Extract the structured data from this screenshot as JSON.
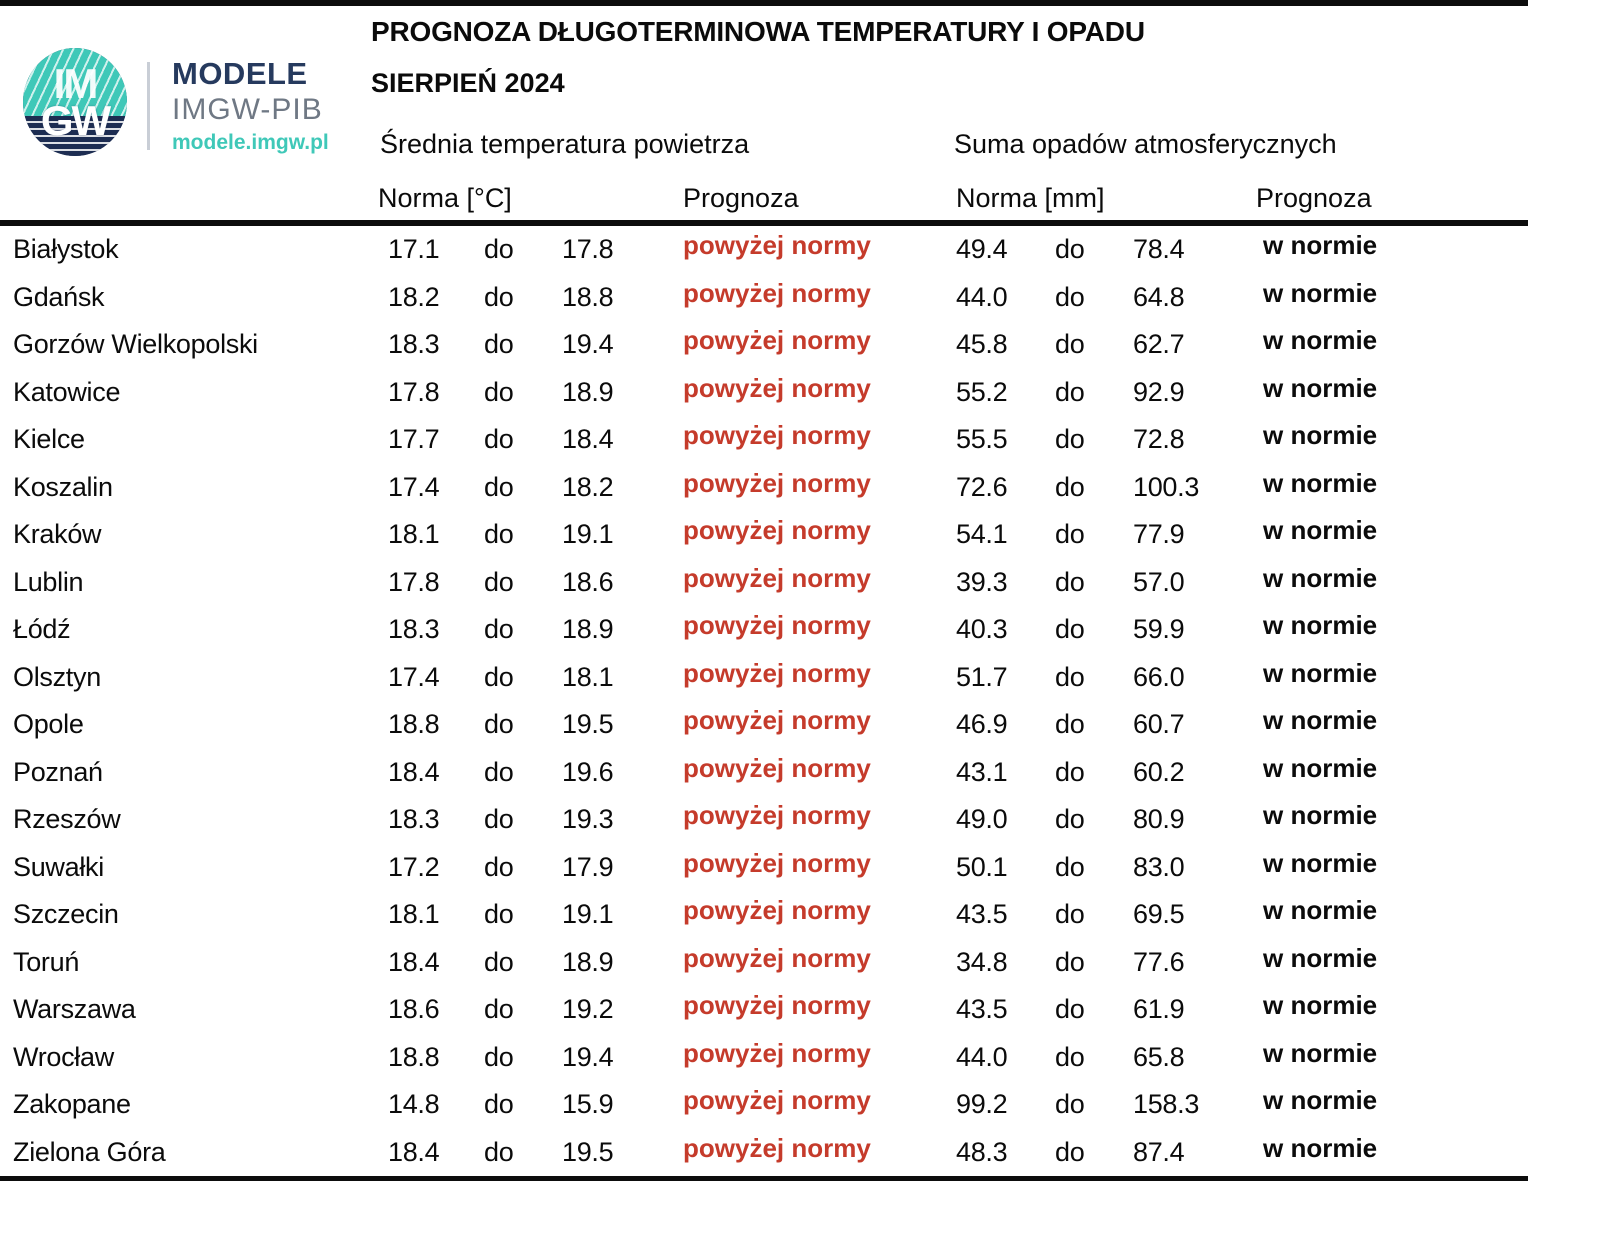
{
  "header": {
    "title": "PROGNOZA DŁUGOTERMINOWA TEMPERATURY I OPADU",
    "subtitle": "SIERPIEŃ 2024",
    "logo": {
      "circle_top": "IM",
      "circle_bottom": "GW",
      "brand": "MODELE",
      "org": "IMGW-PIB",
      "url": "modele.imgw.pl"
    }
  },
  "table": {
    "temp_section": "Średnia temperatura powietrza",
    "precip_section": "Suma opadów atmosferycznych",
    "temp_norm_header": "Norma [°C]",
    "precip_norm_header": "Norma [mm]",
    "prognoza_header": "Prognoza",
    "separator": "do",
    "rows": [
      {
        "city": "Białystok",
        "tmin": "17.1",
        "tmax": "17.8",
        "tforecast": "powyżej normy",
        "pmin": "49.4",
        "pmax": "78.4",
        "pforecast": "w normie"
      },
      {
        "city": "Gdańsk",
        "tmin": "18.2",
        "tmax": "18.8",
        "tforecast": "powyżej normy",
        "pmin": "44.0",
        "pmax": "64.8",
        "pforecast": "w normie"
      },
      {
        "city": "Gorzów Wielkopolski",
        "tmin": "18.3",
        "tmax": "19.4",
        "tforecast": "powyżej normy",
        "pmin": "45.8",
        "pmax": "62.7",
        "pforecast": "w normie"
      },
      {
        "city": "Katowice",
        "tmin": "17.8",
        "tmax": "18.9",
        "tforecast": "powyżej normy",
        "pmin": "55.2",
        "pmax": "92.9",
        "pforecast": "w normie"
      },
      {
        "city": "Kielce",
        "tmin": "17.7",
        "tmax": "18.4",
        "tforecast": "powyżej normy",
        "pmin": "55.5",
        "pmax": "72.8",
        "pforecast": "w normie"
      },
      {
        "city": "Koszalin",
        "tmin": "17.4",
        "tmax": "18.2",
        "tforecast": "powyżej normy",
        "pmin": "72.6",
        "pmax": "100.3",
        "pforecast": "w normie"
      },
      {
        "city": "Kraków",
        "tmin": "18.1",
        "tmax": "19.1",
        "tforecast": "powyżej normy",
        "pmin": "54.1",
        "pmax": "77.9",
        "pforecast": "w normie"
      },
      {
        "city": "Lublin",
        "tmin": "17.8",
        "tmax": "18.6",
        "tforecast": "powyżej normy",
        "pmin": "39.3",
        "pmax": "57.0",
        "pforecast": "w normie"
      },
      {
        "city": "Łódź",
        "tmin": "18.3",
        "tmax": "18.9",
        "tforecast": "powyżej normy",
        "pmin": "40.3",
        "pmax": "59.9",
        "pforecast": "w normie"
      },
      {
        "city": "Olsztyn",
        "tmin": "17.4",
        "tmax": "18.1",
        "tforecast": "powyżej normy",
        "pmin": "51.7",
        "pmax": "66.0",
        "pforecast": "w normie"
      },
      {
        "city": "Opole",
        "tmin": "18.8",
        "tmax": "19.5",
        "tforecast": "powyżej normy",
        "pmin": "46.9",
        "pmax": "60.7",
        "pforecast": "w normie"
      },
      {
        "city": "Poznań",
        "tmin": "18.4",
        "tmax": "19.6",
        "tforecast": "powyżej normy",
        "pmin": "43.1",
        "pmax": "60.2",
        "pforecast": "w normie"
      },
      {
        "city": "Rzeszów",
        "tmin": "18.3",
        "tmax": "19.3",
        "tforecast": "powyżej normy",
        "pmin": "49.0",
        "pmax": "80.9",
        "pforecast": "w normie"
      },
      {
        "city": "Suwałki",
        "tmin": "17.2",
        "tmax": "17.9",
        "tforecast": "powyżej normy",
        "pmin": "50.1",
        "pmax": "83.0",
        "pforecast": "w normie"
      },
      {
        "city": "Szczecin",
        "tmin": "18.1",
        "tmax": "19.1",
        "tforecast": "powyżej normy",
        "pmin": "43.5",
        "pmax": "69.5",
        "pforecast": "w normie"
      },
      {
        "city": "Toruń",
        "tmin": "18.4",
        "tmax": "18.9",
        "tforecast": "powyżej normy",
        "pmin": "34.8",
        "pmax": "77.6",
        "pforecast": "w normie"
      },
      {
        "city": "Warszawa",
        "tmin": "18.6",
        "tmax": "19.2",
        "tforecast": "powyżej normy",
        "pmin": "43.5",
        "pmax": "61.9",
        "pforecast": "w normie"
      },
      {
        "city": "Wrocław",
        "tmin": "18.8",
        "tmax": "19.4",
        "tforecast": "powyżej normy",
        "pmin": "44.0",
        "pmax": "65.8",
        "pforecast": "w normie"
      },
      {
        "city": "Zakopane",
        "tmin": "14.8",
        "tmax": "15.9",
        "tforecast": "powyżej normy",
        "pmin": "99.2",
        "pmax": "158.3",
        "pforecast": "w normie"
      },
      {
        "city": "Zielona Góra",
        "tmin": "18.4",
        "tmax": "19.5",
        "tforecast": "powyżej normy",
        "pmin": "48.3",
        "pmax": "87.4",
        "pforecast": "w normie"
      }
    ]
  },
  "colors": {
    "forecast_red": "#c53b2b",
    "brand_teal": "#3fc8b8",
    "brand_navy": "#263a5e",
    "brand_gray": "#6f7884",
    "line_black": "#0d0d0d"
  }
}
